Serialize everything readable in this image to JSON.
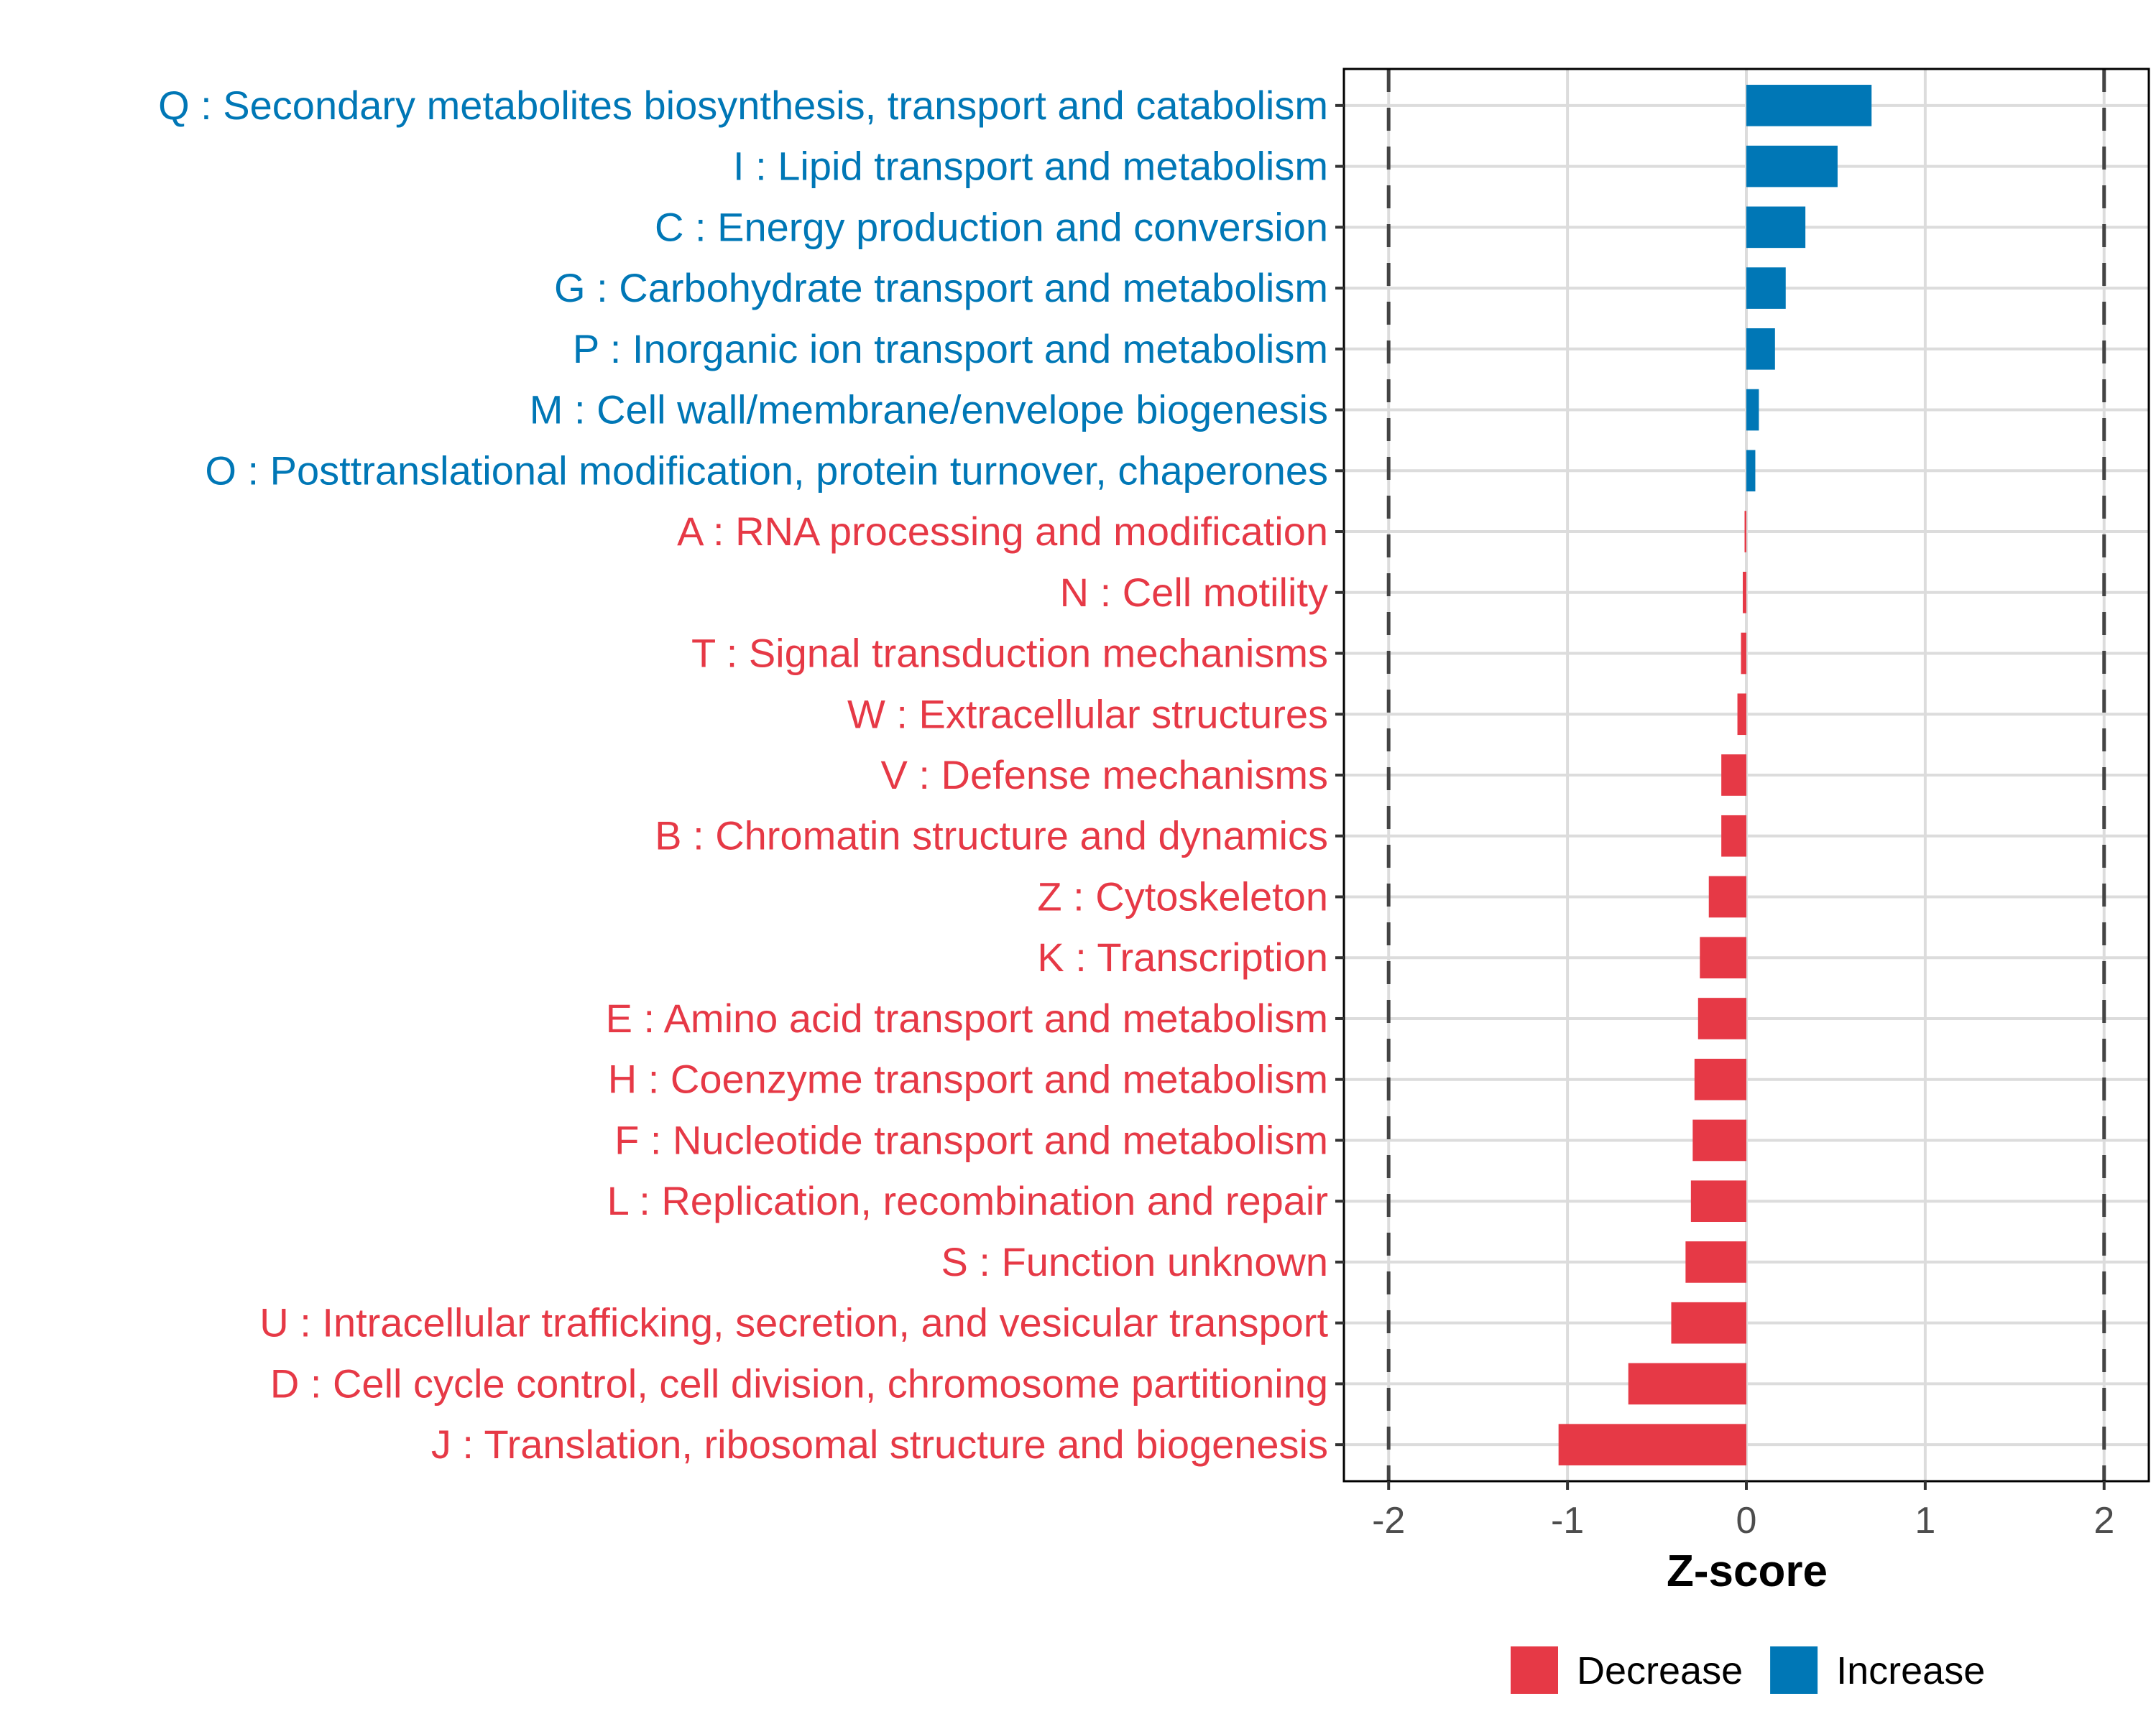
{
  "chart_data": {
    "type": "bar",
    "orientation": "horizontal",
    "title": "",
    "xlabel": "Z-score",
    "ylabel": "",
    "xlim": [
      -2.25,
      2.25
    ],
    "xticks": [
      -2,
      -1,
      0,
      1,
      2
    ],
    "xtick_labels": [
      "-2",
      "-1",
      "0",
      "1",
      "2"
    ],
    "reference_lines": [
      -2,
      2
    ],
    "grid": true,
    "legend": {
      "position": "bottom",
      "entries": [
        {
          "label": "Decrease",
          "color": "#E63946"
        },
        {
          "label": "Increase",
          "color": "#0077B6"
        }
      ]
    },
    "categories": [
      "Q : Secondary metabolites biosynthesis, transport and catabolism",
      "I : Lipid transport and metabolism",
      "C : Energy production and conversion",
      "G : Carbohydrate transport and metabolism",
      "P : Inorganic ion transport and metabolism",
      "M : Cell wall/membrane/envelope biogenesis",
      "O : Posttranslational modification, protein turnover, chaperones",
      "A : RNA processing and modification",
      "N : Cell motility",
      "T : Signal transduction mechanisms",
      "W : Extracellular structures",
      "V : Defense mechanisms",
      "B : Chromatin structure and dynamics",
      "Z : Cytoskeleton",
      "K : Transcription",
      "E : Amino acid transport and metabolism",
      "H : Coenzyme transport and metabolism",
      "F : Nucleotide transport and metabolism",
      "L : Replication, recombination and repair",
      "S : Function unknown",
      "U : Intracellular trafficking, secretion, and vesicular transport",
      "D : Cell cycle control, cell division, chromosome partitioning",
      "J : Translation, ribosomal structure and biogenesis"
    ],
    "values": [
      0.7,
      0.51,
      0.33,
      0.22,
      0.16,
      0.07,
      0.05,
      -0.01,
      -0.02,
      -0.03,
      -0.05,
      -0.14,
      -0.14,
      -0.21,
      -0.26,
      -0.27,
      -0.29,
      -0.3,
      -0.31,
      -0.34,
      -0.42,
      -0.66,
      -1.05
    ],
    "groups": [
      "Increase",
      "Increase",
      "Increase",
      "Increase",
      "Increase",
      "Increase",
      "Increase",
      "Decrease",
      "Decrease",
      "Decrease",
      "Decrease",
      "Decrease",
      "Decrease",
      "Decrease",
      "Decrease",
      "Decrease",
      "Decrease",
      "Decrease",
      "Decrease",
      "Decrease",
      "Decrease",
      "Decrease",
      "Decrease"
    ]
  }
}
